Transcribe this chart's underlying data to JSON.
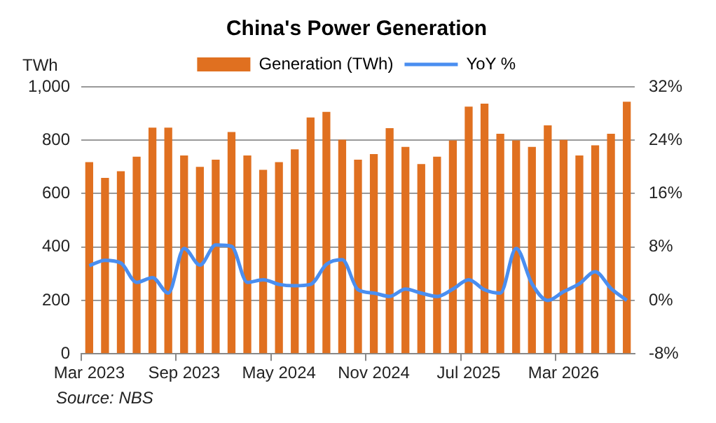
{
  "chart_data": {
    "type": "bar",
    "title": "China's Power Generation",
    "ylabel": "TWh",
    "annotations": [
      "Source: NBS"
    ],
    "categories": [
      "Mar 2023",
      null,
      null,
      null,
      null,
      null,
      "Sep 2023",
      null,
      null,
      null,
      null,
      null,
      "May 2024",
      null,
      null,
      null,
      null,
      null,
      "Nov 2024",
      null,
      null,
      null,
      null,
      null,
      "Jul 2025",
      null,
      null,
      null,
      null,
      null,
      "Mar 2026",
      null,
      null,
      null,
      null
    ],
    "series": [
      {
        "name": "Generation (TWh)",
        "color": "#e07020",
        "values": [
          718,
          659,
          684,
          738,
          847,
          847,
          743,
          700,
          727,
          831,
          743,
          689,
          718,
          766,
          885,
          906,
          802,
          727,
          748,
          845,
          775,
          711,
          738,
          799,
          926,
          937,
          824,
          799,
          775,
          856,
          801,
          743,
          781,
          824,
          944
        ]
      },
      {
        "name": "YoY %",
        "type": "line",
        "axis": "y2",
        "color": "#4a8ef0",
        "values": [
          5.2,
          6.0,
          5.6,
          2.7,
          3.4,
          1.1,
          7.8,
          5.3,
          8.3,
          8.1,
          2.7,
          3.1,
          2.4,
          2.2,
          2.4,
          5.4,
          6.1,
          1.6,
          1.1,
          0.6,
          1.7,
          1.1,
          0.6,
          1.7,
          3.1,
          1.6,
          1.1,
          7.8,
          2.5,
          0,
          1.3,
          2.5,
          4.3,
          1.8,
          0
        ]
      }
    ],
    "ylim": [
      0,
      1000
    ],
    "yticks": [
      0,
      200,
      400,
      600,
      800,
      {
        "value": 1000,
        "label": "1,000"
      }
    ],
    "y2lim": [
      -8,
      32
    ],
    "y2ticks": [
      {
        "value": -8,
        "label": "-8%"
      },
      {
        "value": 0,
        "label": "0%"
      },
      {
        "value": 8,
        "label": "8%"
      },
      {
        "value": 16,
        "label": "16%"
      },
      {
        "value": 24,
        "label": "24%"
      },
      {
        "value": 32,
        "label": "32%"
      }
    ],
    "grid": "y",
    "legend": "top",
    "marker": "none",
    "line_style": "solid"
  }
}
